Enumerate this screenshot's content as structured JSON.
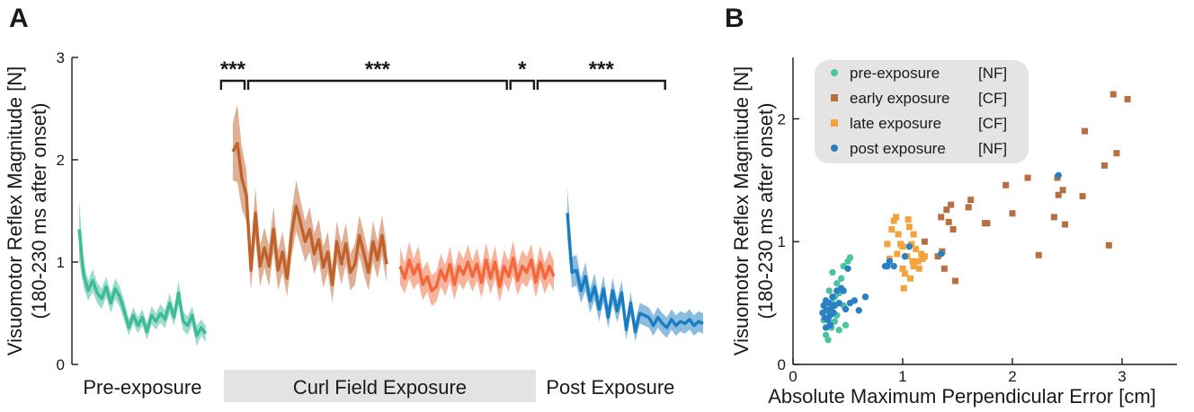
{
  "colors": {
    "pre": "#3dbb98",
    "early": "#c0622b",
    "late": "#f2683a",
    "post": "#1a7cc1",
    "scatter_pre": "#4cc4a0",
    "scatter_early": "#b86f3f",
    "scatter_late": "#f4a23c",
    "scatter_post": "#2a80c4",
    "phase_band": "#e3e3e3",
    "legend_bg": "#e4e4e4"
  },
  "panel_a": {
    "letter": "A",
    "ylabel_line1": "Visuomotor Reflex Magnitude [N]",
    "ylabel_line2": "(180-230 ms after onset)",
    "phase_labels": [
      "Pre-exposure",
      "Curl Field Exposure",
      "Post Exposure"
    ],
    "significance": [
      "***",
      "***",
      "*",
      "***"
    ]
  },
  "panel_b": {
    "letter": "B",
    "ylabel_line1": "Visuomotor Reflex Magnitude [N]",
    "ylabel_line2": "(180-230 ms after onset)",
    "xlabel": "Absolute Maximum Perpendicular Error [cm]",
    "legend": [
      {
        "label": "pre-exposure",
        "field": "[NF]",
        "marker": "circle",
        "color_key": "scatter_pre"
      },
      {
        "label": "early exposure",
        "field": "[CF]",
        "marker": "square",
        "color_key": "scatter_early"
      },
      {
        "label": "late exposure",
        "field": "[CF]",
        "marker": "square",
        "color_key": "scatter_late"
      },
      {
        "label": "post exposure",
        "field": "[NF]",
        "marker": "circle",
        "color_key": "scatter_post"
      }
    ]
  },
  "chart_data": [
    {
      "type": "line",
      "panel": "A",
      "title": "",
      "xlabel": "",
      "ylabel": "Visuomotor Reflex Magnitude [N] (180-230 ms after onset)",
      "ylim": [
        0,
        3
      ],
      "yticks": [
        0,
        1,
        2,
        3
      ],
      "grid": false,
      "series": [
        {
          "name": "Pre-exposure",
          "color_key": "pre",
          "x_start": 0,
          "values": [
            1.32,
            0.88,
            0.72,
            0.82,
            0.7,
            0.64,
            0.76,
            0.6,
            0.74,
            0.66,
            0.52,
            0.36,
            0.48,
            0.38,
            0.46,
            0.32,
            0.48,
            0.42,
            0.5,
            0.44,
            0.6,
            0.46,
            0.7,
            0.42,
            0.38,
            0.48,
            0.28,
            0.36,
            0.3
          ],
          "sem": [
            0.3,
            0.13,
            0.1,
            0.11,
            0.1,
            0.1,
            0.1,
            0.1,
            0.1,
            0.1,
            0.1,
            0.08,
            0.08,
            0.08,
            0.08,
            0.08,
            0.09,
            0.08,
            0.09,
            0.09,
            0.1,
            0.08,
            0.12,
            0.09,
            0.09,
            0.09,
            0.1,
            0.08,
            0.08
          ]
        },
        {
          "name": "Early exposure",
          "color_key": "early",
          "x_start": 34,
          "values": [
            2.08,
            2.16,
            1.82,
            1.65,
            0.92,
            1.48,
            0.96,
            1.14,
            0.96,
            1.32,
            0.92,
            1.1,
            0.84,
            1.28,
            1.55,
            1.38,
            1.2,
            1.32,
            1.08,
            1.22,
            0.95,
            1.1,
            0.78,
            1.2,
            0.98,
            1.18,
            0.9,
            0.98,
            1.26,
            1.08,
            0.9,
            1.2,
            1.02,
            1.26,
            0.98
          ],
          "sem": [
            0.28,
            0.38,
            0.3,
            0.25,
            0.2,
            0.25,
            0.2,
            0.2,
            0.2,
            0.22,
            0.2,
            0.2,
            0.18,
            0.22,
            0.25,
            0.22,
            0.2,
            0.22,
            0.2,
            0.2,
            0.2,
            0.2,
            0.18,
            0.2,
            0.2,
            0.2,
            0.18,
            0.2,
            0.2,
            0.2,
            0.18,
            0.2,
            0.18,
            0.2,
            0.18
          ]
        },
        {
          "name": "Late exposure",
          "color_key": "late",
          "x_start": 71,
          "values": [
            0.96,
            0.84,
            1.02,
            0.88,
            0.98,
            0.78,
            0.86,
            0.72,
            0.76,
            0.92,
            0.82,
            0.98,
            0.78,
            0.96,
            0.88,
            1.0,
            0.86,
            0.98,
            0.8,
            1.02,
            0.84,
            1.0,
            0.76,
            0.96,
            0.86,
            1.04,
            0.82,
            0.96,
            0.9,
            1.02,
            0.8,
            1.0,
            0.84,
            0.96,
            0.86
          ],
          "sem": [
            0.18,
            0.15,
            0.18,
            0.15,
            0.18,
            0.15,
            0.15,
            0.15,
            0.15,
            0.16,
            0.15,
            0.17,
            0.15,
            0.16,
            0.15,
            0.17,
            0.15,
            0.16,
            0.15,
            0.17,
            0.15,
            0.16,
            0.15,
            0.16,
            0.15,
            0.17,
            0.15,
            0.16,
            0.15,
            0.16,
            0.15,
            0.16,
            0.15,
            0.16,
            0.15
          ]
        },
        {
          "name": "Post exposure",
          "color_key": "post",
          "x_start": 108,
          "values": [
            1.48,
            0.9,
            0.92,
            0.72,
            0.86,
            0.62,
            0.76,
            0.54,
            0.74,
            0.46,
            0.72,
            0.52,
            0.7,
            0.34,
            0.6,
            0.32,
            0.5,
            0.48,
            0.46,
            0.38,
            0.46,
            0.4,
            0.36,
            0.44,
            0.38,
            0.42,
            0.4,
            0.44,
            0.38,
            0.42,
            0.4
          ],
          "sem": [
            0.25,
            0.15,
            0.15,
            0.12,
            0.14,
            0.12,
            0.13,
            0.12,
            0.13,
            0.11,
            0.13,
            0.11,
            0.12,
            0.1,
            0.11,
            0.1,
            0.1,
            0.1,
            0.1,
            0.1,
            0.1,
            0.1,
            0.1,
            0.1,
            0.1,
            0.1,
            0.1,
            0.1,
            0.1,
            0.1,
            0.1
          ]
        }
      ],
      "x_extent": [
        0,
        139
      ],
      "significance_brackets": [
        {
          "from": 31,
          "to": 37,
          "label": "***"
        },
        {
          "from": 37,
          "to": 95,
          "label": "***"
        },
        {
          "from": 95,
          "to": 101,
          "label": "*"
        },
        {
          "from": 101,
          "to": 130,
          "label": "***"
        }
      ],
      "phase_bands": [
        {
          "label": "Pre-exposure",
          "from": -3,
          "to": 31,
          "shaded": false
        },
        {
          "label": "Curl Field Exposure",
          "from": 32,
          "to": 101,
          "shaded": true
        },
        {
          "label": "Post Exposure",
          "from": 103,
          "to": 132,
          "shaded": false
        }
      ]
    },
    {
      "type": "scatter",
      "panel": "B",
      "title": "",
      "xlabel": "Absolute Maximum Perpendicular Error [cm]",
      "ylabel": "Visuomotor Reflex Magnitude [N] (180-230 ms after onset)",
      "xlim": [
        0,
        3.5
      ],
      "ylim": [
        0,
        2.5
      ],
      "xticks": [
        0,
        1,
        2,
        3
      ],
      "yticks": [
        0,
        1,
        2
      ],
      "grid": false,
      "legend_position": "top-left",
      "series": [
        {
          "name": "pre-exposure [NF]",
          "marker": "circle",
          "color_key": "scatter_pre",
          "points": [
            [
              0.28,
              0.36
            ],
            [
              0.3,
              0.24
            ],
            [
              0.32,
              0.2
            ],
            [
              0.34,
              0.42
            ],
            [
              0.35,
              0.3
            ],
            [
              0.36,
              0.5
            ],
            [
              0.38,
              0.55
            ],
            [
              0.4,
              0.4
            ],
            [
              0.42,
              0.58
            ],
            [
              0.44,
              0.62
            ],
            [
              0.46,
              0.8
            ],
            [
              0.5,
              0.84
            ],
            [
              0.52,
              0.87
            ],
            [
              0.36,
              0.75
            ],
            [
              0.4,
              0.66
            ],
            [
              0.3,
              0.45
            ],
            [
              0.48,
              0.32
            ],
            [
              0.42,
              0.28
            ],
            [
              0.38,
              0.35
            ],
            [
              0.46,
              0.48
            ],
            [
              0.33,
              0.6
            ],
            [
              0.44,
              0.7
            ]
          ]
        },
        {
          "name": "early exposure [CF]",
          "marker": "square",
          "color_key": "scatter_early",
          "points": [
            [
              1.2,
              1.0
            ],
            [
              1.32,
              0.88
            ],
            [
              1.35,
              1.2
            ],
            [
              1.36,
              0.92
            ],
            [
              1.38,
              0.78
            ],
            [
              1.4,
              1.26
            ],
            [
              1.42,
              1.16
            ],
            [
              1.44,
              1.3
            ],
            [
              1.46,
              1.1
            ],
            [
              1.48,
              0.68
            ],
            [
              1.6,
              1.28
            ],
            [
              1.62,
              1.34
            ],
            [
              1.75,
              1.15
            ],
            [
              1.77,
              1.15
            ],
            [
              1.94,
              1.46
            ],
            [
              2.0,
              1.23
            ],
            [
              2.14,
              1.52
            ],
            [
              2.24,
              0.89
            ],
            [
              2.38,
              1.2
            ],
            [
              2.42,
              1.38
            ],
            [
              2.46,
              1.42
            ],
            [
              2.48,
              1.14
            ],
            [
              2.64,
              1.37
            ],
            [
              2.66,
              1.9
            ],
            [
              2.84,
              1.62
            ],
            [
              2.88,
              0.97
            ],
            [
              2.92,
              2.2
            ],
            [
              2.95,
              1.72
            ],
            [
              3.05,
              2.16
            ],
            [
              2.41,
              1.52
            ]
          ]
        },
        {
          "name": "late exposure [CF]",
          "marker": "square",
          "color_key": "scatter_late",
          "points": [
            [
              0.86,
              0.98
            ],
            [
              0.88,
              0.86
            ],
            [
              0.9,
              1.1
            ],
            [
              0.92,
              1.17
            ],
            [
              0.94,
              1.2
            ],
            [
              0.95,
              0.9
            ],
            [
              0.96,
              1.06
            ],
            [
              0.98,
              0.98
            ],
            [
              1.0,
              0.78
            ],
            [
              1.0,
              0.96
            ],
            [
              1.02,
              0.74
            ],
            [
              1.04,
              0.88
            ],
            [
              1.05,
              1.18
            ],
            [
              1.06,
              1.12
            ],
            [
              1.07,
              0.7
            ],
            [
              1.08,
              0.98
            ],
            [
              1.09,
              0.84
            ],
            [
              1.1,
              1.06
            ],
            [
              1.1,
              0.8
            ],
            [
              1.12,
              0.94
            ],
            [
              1.14,
              0.84
            ],
            [
              1.15,
              0.78
            ],
            [
              1.17,
              0.9
            ],
            [
              1.18,
              0.86
            ],
            [
              1.2,
              0.88
            ],
            [
              1.01,
              0.62
            ]
          ]
        },
        {
          "name": "post exposure [NF]",
          "marker": "circle",
          "color_key": "scatter_post",
          "points": [
            [
              0.27,
              0.42
            ],
            [
              0.28,
              0.48
            ],
            [
              0.29,
              0.38
            ],
            [
              0.3,
              0.52
            ],
            [
              0.31,
              0.44
            ],
            [
              0.32,
              0.36
            ],
            [
              0.33,
              0.5
            ],
            [
              0.34,
              0.4
            ],
            [
              0.35,
              0.46
            ],
            [
              0.36,
              0.55
            ],
            [
              0.37,
              0.42
            ],
            [
              0.38,
              0.48
            ],
            [
              0.4,
              0.6
            ],
            [
              0.42,
              0.5
            ],
            [
              0.44,
              0.62
            ],
            [
              0.46,
              0.6
            ],
            [
              0.48,
              0.45
            ],
            [
              0.5,
              0.78
            ],
            [
              0.52,
              0.5
            ],
            [
              0.56,
              0.52
            ],
            [
              0.6,
              0.44
            ],
            [
              0.66,
              0.55
            ],
            [
              0.84,
              0.8
            ],
            [
              0.86,
              0.8
            ],
            [
              0.88,
              0.84
            ],
            [
              0.92,
              0.8
            ],
            [
              1.02,
              0.88
            ],
            [
              1.06,
              0.96
            ],
            [
              2.42,
              1.54
            ],
            [
              1.35,
              0.9
            ],
            [
              0.3,
              0.3
            ],
            [
              0.34,
              0.32
            ]
          ]
        }
      ]
    }
  ]
}
